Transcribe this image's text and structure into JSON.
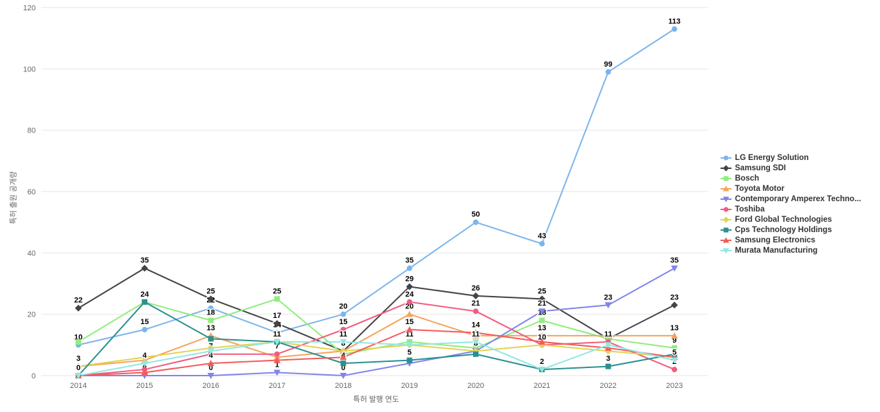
{
  "chart_data": {
    "type": "line",
    "title": "",
    "xlabel": "특허 발행 연도",
    "ylabel": "특허 출원 공개량",
    "x": [
      2014,
      2015,
      2016,
      2017,
      2018,
      2019,
      2020,
      2021,
      2022,
      2023
    ],
    "ylim": [
      0,
      120
    ],
    "yticks": [
      0,
      20,
      40,
      60,
      80,
      100,
      120
    ],
    "grid": true,
    "legend_position": "right",
    "series": [
      {
        "name": "LG Energy Solution",
        "color": "#7cb5ec",
        "symbol": "circle",
        "values": [
          10,
          15,
          22,
          14,
          20,
          35,
          50,
          43,
          99,
          113
        ],
        "labels": [
          10,
          15,
          22,
          14,
          20,
          35,
          50,
          43,
          99,
          113
        ]
      },
      {
        "name": "Samsung SDI",
        "color": "#434348",
        "symbol": "diamond",
        "values": [
          22,
          35,
          25,
          17,
          8,
          29,
          26,
          25,
          12,
          23
        ],
        "labels": [
          22,
          35,
          25,
          17,
          null,
          29,
          26,
          25,
          null,
          23
        ]
      },
      {
        "name": "Bosch",
        "color": "#90ed7d",
        "symbol": "square",
        "values": [
          11,
          24,
          18,
          25,
          7,
          11,
          9,
          18,
          12,
          9
        ],
        "labels": [
          null,
          null,
          18,
          25,
          null,
          11,
          null,
          18,
          null,
          9
        ]
      },
      {
        "name": "Toyota Motor",
        "color": "#f7a35c",
        "symbol": "triangle",
        "values": [
          3,
          5,
          13,
          6,
          8,
          20,
          13,
          13,
          13,
          13
        ],
        "labels": [
          null,
          null,
          13,
          null,
          8,
          20,
          null,
          13,
          null,
          13
        ]
      },
      {
        "name": "Contemporary Amperex Techno...",
        "color": "#8085e9",
        "symbol": "triangle-down",
        "values": [
          0,
          0,
          0,
          1,
          0,
          4,
          8,
          21,
          23,
          35
        ],
        "labels": [
          null,
          0,
          0,
          1,
          0,
          null,
          null,
          21,
          23,
          35
        ]
      },
      {
        "name": "Toshiba",
        "color": "#f15c80",
        "symbol": "circle",
        "values": [
          0,
          2,
          7,
          7,
          15,
          24,
          21,
          10,
          11,
          2
        ],
        "labels": [
          null,
          null,
          7,
          7,
          15,
          24,
          21,
          10,
          11,
          2
        ]
      },
      {
        "name": "Ford Global Technologies",
        "color": "#e4d354",
        "symbol": "diamond",
        "values": [
          3,
          6,
          9,
          11,
          8,
          10,
          8,
          10,
          8,
          6
        ],
        "labels": [
          3,
          null,
          null,
          null,
          null,
          null,
          8,
          null,
          null,
          null
        ]
      },
      {
        "name": "Cps Technology Holdings",
        "color": "#2b908f",
        "symbol": "square",
        "values": [
          0,
          24,
          12,
          11,
          4,
          5,
          7,
          2,
          3,
          7
        ],
        "labels": [
          null,
          24,
          null,
          11,
          4,
          5,
          null,
          2,
          3,
          null
        ]
      },
      {
        "name": "Samsung Electronics",
        "color": "#f45b5b",
        "symbol": "triangle",
        "values": [
          0,
          1,
          4,
          5,
          6,
          15,
          14,
          11,
          9,
          6
        ],
        "labels": [
          0,
          null,
          4,
          null,
          null,
          15,
          14,
          null,
          null,
          null
        ]
      },
      {
        "name": "Murata Manufacturing",
        "color": "#91e8e1",
        "symbol": "triangle-down",
        "values": [
          0,
          4,
          8,
          11,
          11,
          10,
          11,
          2,
          10,
          5
        ],
        "labels": [
          null,
          4,
          null,
          null,
          11,
          null,
          11,
          null,
          null,
          5
        ]
      }
    ]
  },
  "colors": {
    "background": "#ffffff",
    "grid": "#e6e6e6",
    "axis_text": "#666666",
    "data_label": "#000000",
    "legend_text": "#333333"
  }
}
